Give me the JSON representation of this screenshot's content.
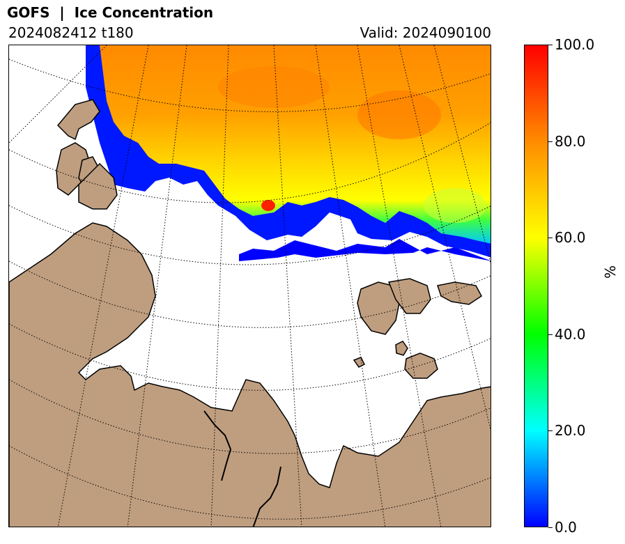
{
  "header": {
    "title": "GOFS  |  Ice Concentration",
    "run": "2024082412 t180",
    "valid": "Valid: 2024090100"
  },
  "colorbar": {
    "unit": "%",
    "min": 0,
    "max": 100,
    "ticks": [
      {
        "value": 0,
        "label": "0.0"
      },
      {
        "value": 20,
        "label": "20.0"
      },
      {
        "value": 40,
        "label": "40.0"
      },
      {
        "value": 60,
        "label": "60.0"
      },
      {
        "value": 80,
        "label": "80.0"
      },
      {
        "value": 100,
        "label": "100.0"
      }
    ],
    "colors": [
      "#0000ff",
      "#00ffff",
      "#00ff00",
      "#ffff00",
      "#ff8c00",
      "#ff0000"
    ]
  },
  "map": {
    "land_color": "#bf9e7f",
    "ocean_color": "#ffffff",
    "graticule": "dotted"
  }
}
